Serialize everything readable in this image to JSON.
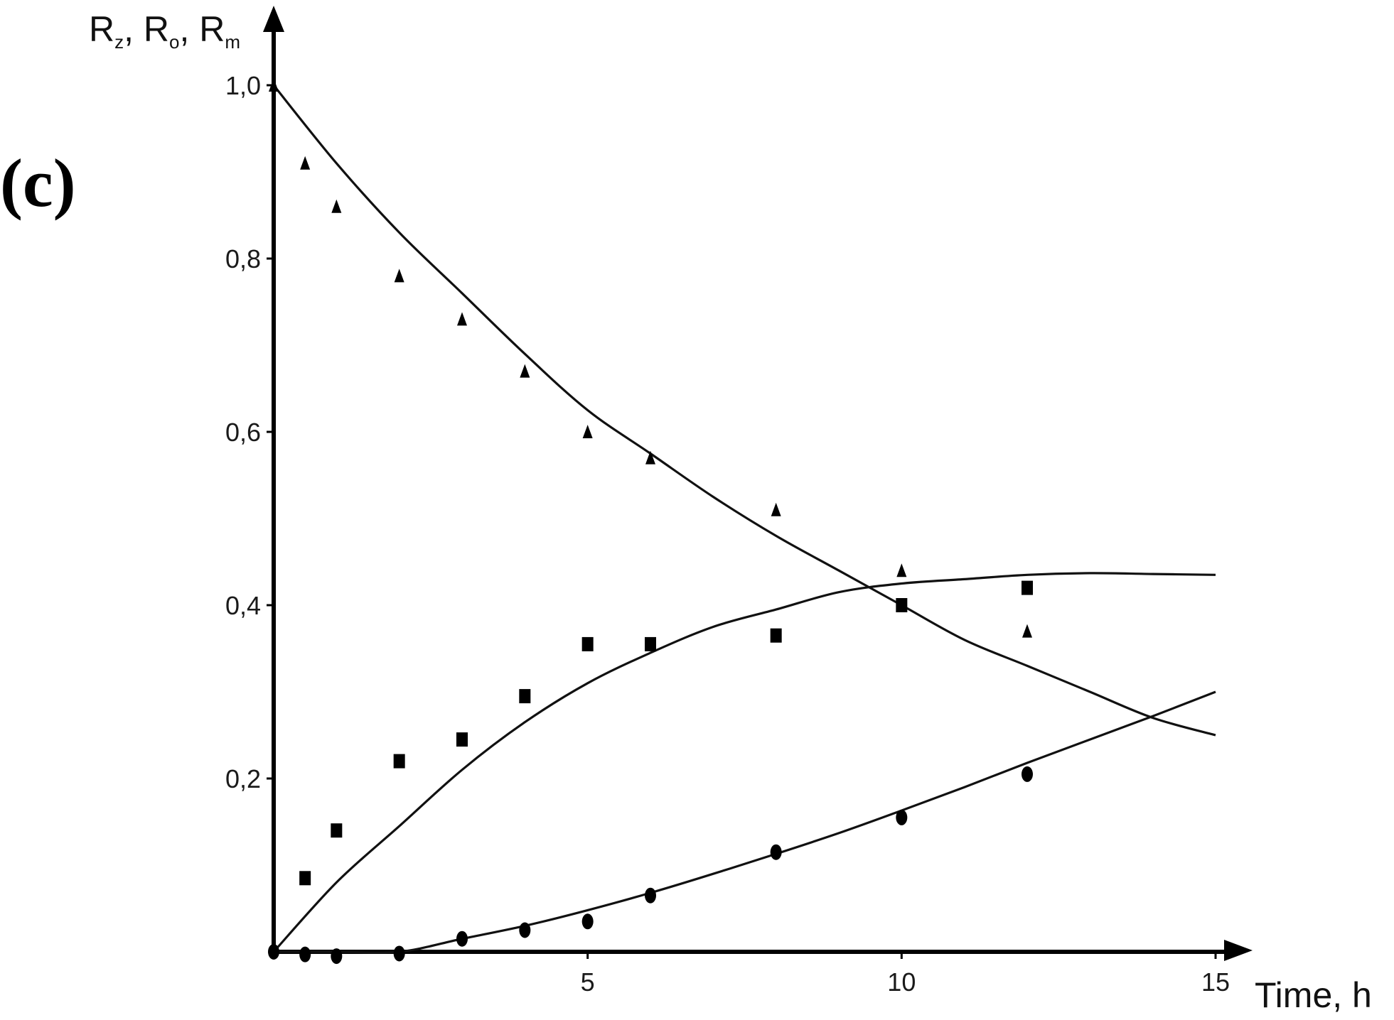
{
  "panel_label": "(c)",
  "chart_data": {
    "type": "scatter",
    "title": "",
    "xlabel": "Time, h",
    "ylabel": {
      "parts": [
        {
          "main": "R",
          "sub": "z",
          "sep": ", "
        },
        {
          "main": "R",
          "sub": "o",
          "sep": ", "
        },
        {
          "main": "R",
          "sub": "m",
          "sep": ""
        }
      ]
    },
    "xlim": [
      0,
      15
    ],
    "ylim": [
      0,
      1.0
    ],
    "x_ticks": [
      {
        "value": 5,
        "label": "5"
      },
      {
        "value": 10,
        "label": "10"
      },
      {
        "value": 15,
        "label": "15"
      }
    ],
    "y_ticks": [
      {
        "value": 0.2,
        "label": "0,2"
      },
      {
        "value": 0.4,
        "label": "0,4"
      },
      {
        "value": 0.6,
        "label": "0,6"
      },
      {
        "value": 0.8,
        "label": "0,8"
      },
      {
        "value": 1.0,
        "label": "1,0"
      }
    ],
    "grid": false,
    "series": [
      {
        "marker": "triangle",
        "points": [
          [
            0,
            1.0
          ],
          [
            0.5,
            0.91
          ],
          [
            1,
            0.86
          ],
          [
            2,
            0.78
          ],
          [
            3,
            0.73
          ],
          [
            4,
            0.67
          ],
          [
            5,
            0.6
          ],
          [
            6,
            0.57
          ],
          [
            8,
            0.51
          ],
          [
            10,
            0.44
          ],
          [
            12,
            0.37
          ]
        ],
        "fit": [
          [
            0,
            1.0
          ],
          [
            1,
            0.91
          ],
          [
            2,
            0.83
          ],
          [
            3,
            0.76
          ],
          [
            4,
            0.69
          ],
          [
            5,
            0.625
          ],
          [
            6,
            0.575
          ],
          [
            7,
            0.525
          ],
          [
            8,
            0.48
          ],
          [
            9,
            0.44
          ],
          [
            10,
            0.4
          ],
          [
            11,
            0.36
          ],
          [
            12,
            0.33
          ],
          [
            13,
            0.3
          ],
          [
            14,
            0.27
          ],
          [
            15,
            0.25
          ]
        ]
      },
      {
        "marker": "square",
        "points": [
          [
            0.5,
            0.085
          ],
          [
            1,
            0.14
          ],
          [
            2,
            0.22
          ],
          [
            3,
            0.245
          ],
          [
            4,
            0.295
          ],
          [
            5,
            0.355
          ],
          [
            6,
            0.355
          ],
          [
            8,
            0.365
          ],
          [
            10,
            0.4
          ],
          [
            12,
            0.42
          ]
        ],
        "fit": [
          [
            0,
            0.0
          ],
          [
            1,
            0.08
          ],
          [
            2,
            0.145
          ],
          [
            3,
            0.21
          ],
          [
            4,
            0.265
          ],
          [
            5,
            0.31
          ],
          [
            6,
            0.345
          ],
          [
            7,
            0.375
          ],
          [
            8,
            0.395
          ],
          [
            9,
            0.415
          ],
          [
            10,
            0.425
          ],
          [
            11,
            0.43
          ],
          [
            12,
            0.435
          ],
          [
            13,
            0.437
          ],
          [
            14,
            0.436
          ],
          [
            15,
            0.435
          ]
        ]
      },
      {
        "marker": "circle",
        "points": [
          [
            0,
            0.0
          ],
          [
            0.5,
            -0.003
          ],
          [
            1,
            -0.005
          ],
          [
            2,
            -0.002
          ],
          [
            3,
            0.015
          ],
          [
            4,
            0.025
          ],
          [
            5,
            0.035
          ],
          [
            6,
            0.065
          ],
          [
            8,
            0.115
          ],
          [
            10,
            0.155
          ],
          [
            12,
            0.205
          ]
        ],
        "fit": [
          [
            0,
            0.0
          ],
          [
            1,
            0.0
          ],
          [
            2,
            0.0
          ],
          [
            3,
            0.015
          ],
          [
            4,
            0.03
          ],
          [
            5,
            0.048
          ],
          [
            6,
            0.068
          ],
          [
            7,
            0.09
          ],
          [
            8,
            0.113
          ],
          [
            9,
            0.137
          ],
          [
            10,
            0.163
          ],
          [
            11,
            0.19
          ],
          [
            12,
            0.218
          ],
          [
            13,
            0.245
          ],
          [
            14,
            0.272
          ],
          [
            15,
            0.3
          ]
        ]
      }
    ]
  }
}
